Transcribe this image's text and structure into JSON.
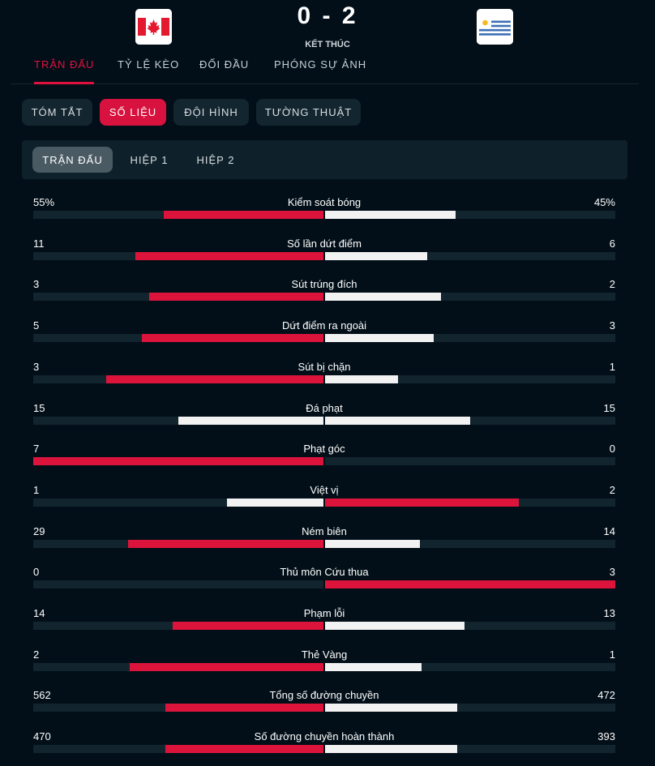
{
  "match": {
    "home_flag_icon": "canada-flag-icon",
    "away_flag_icon": "uruguay-flag-icon",
    "score": "0 - 2",
    "status": "KẾT THÚC"
  },
  "main_tabs": [
    "TRẬN ĐẤU",
    "TỶ LỆ KÈO",
    "ĐỐI ĐẦU",
    "PHÓNG SỰ ẢNH"
  ],
  "sub_tabs": [
    "TÓM TẮT",
    "SỐ LIỆU",
    "ĐỘI HÌNH",
    "TƯỜNG THUẬT"
  ],
  "period_tabs": [
    "TRẬN ĐẤU",
    "HIỆP 1",
    "HIỆP 2"
  ],
  "colors": {
    "accent": "#e0113f",
    "bar_home": "#dc143c",
    "bar_away": "#f2f2f2",
    "track": "#12242e"
  },
  "stats": [
    {
      "label": "Kiểm soát bóng",
      "home": "55%",
      "away": "45%",
      "home_share": 0.55,
      "away_share": 0.45
    },
    {
      "label": "Số lần dứt điểm",
      "home": "11",
      "away": "6",
      "home_share": 0.647,
      "away_share": 0.353
    },
    {
      "label": "Sút trúng đích",
      "home": "3",
      "away": "2",
      "home_share": 0.6,
      "away_share": 0.4
    },
    {
      "label": "Dứt điểm ra ngoài",
      "home": "5",
      "away": "3",
      "home_share": 0.625,
      "away_share": 0.375
    },
    {
      "label": "Sút bị chặn",
      "home": "3",
      "away": "1",
      "home_share": 0.75,
      "away_share": 0.25
    },
    {
      "label": "Đá phạt",
      "home": "15",
      "away": "15",
      "home_share": 0.5,
      "away_share": 0.5
    },
    {
      "label": "Phạt góc",
      "home": "7",
      "away": "0",
      "home_share": 1.0,
      "away_share": 0.0
    },
    {
      "label": "Việt vị",
      "home": "1",
      "away": "2",
      "home_share": 0.333,
      "away_share": 0.667
    },
    {
      "label": "Ném biên",
      "home": "29",
      "away": "14",
      "home_share": 0.674,
      "away_share": 0.326
    },
    {
      "label": "Thủ môn Cứu thua",
      "home": "0",
      "away": "3",
      "home_share": 0.0,
      "away_share": 1.0
    },
    {
      "label": "Phạm lỗi",
      "home": "14",
      "away": "13",
      "home_share": 0.519,
      "away_share": 0.481
    },
    {
      "label": "Thẻ Vàng",
      "home": "2",
      "away": "1",
      "home_share": 0.667,
      "away_share": 0.333
    },
    {
      "label": "Tổng số đường chuyền",
      "home": "562",
      "away": "472",
      "home_share": 0.544,
      "away_share": 0.456
    },
    {
      "label": "Số đường chuyền hoàn thành",
      "home": "470",
      "away": "393",
      "home_share": 0.545,
      "away_share": 0.455
    }
  ]
}
